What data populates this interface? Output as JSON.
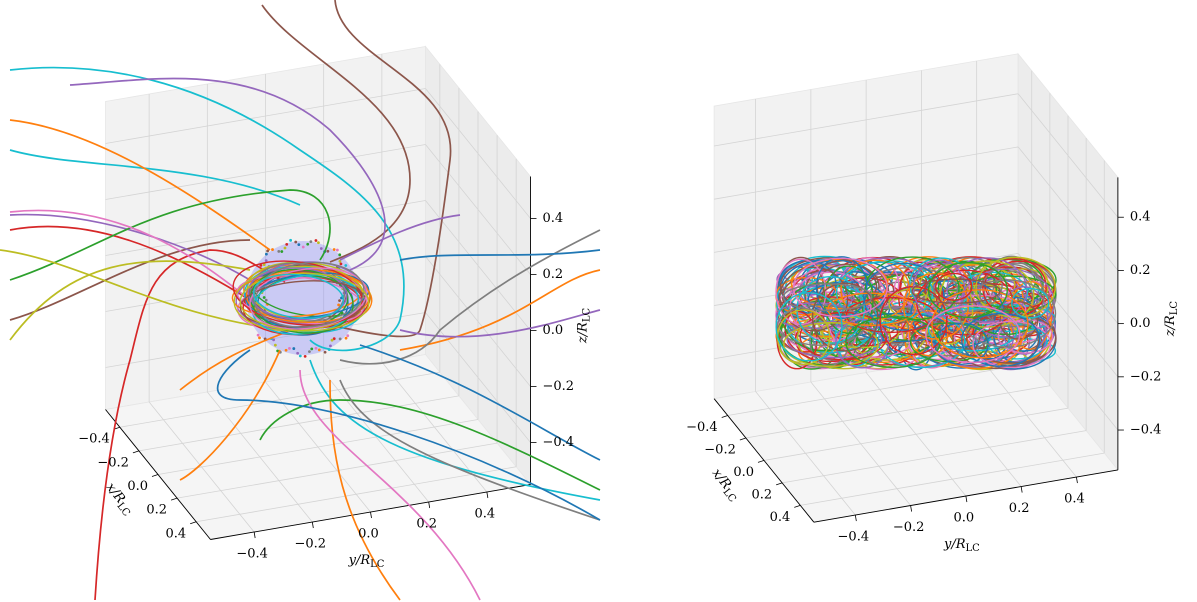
{
  "chart_data": [
    {
      "type": "line3d",
      "xlabel": {
        "text": "x/R",
        "sub": "LC"
      },
      "ylabel": {
        "text": "y/R",
        "sub": "LC"
      },
      "zlabel": {
        "text": "z/R",
        "sub": "LC"
      },
      "xlim": [
        -0.55,
        0.55
      ],
      "ylim": [
        -0.55,
        0.55
      ],
      "zlim": [
        -0.55,
        0.55
      ],
      "xticks": [
        {
          "value": -0.4,
          "label": "−0.4"
        },
        {
          "value": -0.2,
          "label": "−0.2"
        },
        {
          "value": 0,
          "label": "0.0"
        },
        0.2,
        0.4
      ],
      "yticks": [
        {
          "value": -0.4,
          "label": "−0.4"
        },
        {
          "value": -0.2,
          "label": "−0.2"
        },
        {
          "value": 0,
          "label": "0.0"
        },
        0.2,
        0.4
      ],
      "zticks": [
        {
          "value": -0.4,
          "label": "−0.4"
        },
        {
          "value": -0.2,
          "label": "−0.2"
        },
        {
          "value": 0,
          "label": "0.0"
        },
        0.2,
        0.4
      ]
    },
    {
      "type": "line3d",
      "xlabel": {
        "text": "x/R",
        "sub": "LC"
      },
      "ylabel": {
        "text": "y/R",
        "sub": "LC"
      },
      "zlabel": {
        "text": "z/R",
        "sub": "LC"
      },
      "xlim": [
        -0.55,
        0.55
      ],
      "ylim": [
        -0.55,
        0.55
      ],
      "zlim": [
        -0.55,
        0.55
      ],
      "xticks": [
        {
          "value": -0.4,
          "label": "−0.4"
        },
        {
          "value": -0.2,
          "label": "−0.2"
        },
        {
          "value": 0,
          "label": "0.0"
        },
        0.2,
        0.4
      ],
      "yticks": [
        {
          "value": -0.4,
          "label": "−0.4"
        },
        {
          "value": -0.2,
          "label": "−0.2"
        },
        {
          "value": 0,
          "label": "0.0"
        },
        0.2,
        0.4
      ],
      "zticks": [
        {
          "value": -0.4,
          "label": "−0.4"
        },
        {
          "value": -0.2,
          "label": "−0.2"
        },
        {
          "value": 0,
          "label": "0.0"
        },
        0.2,
        0.4
      ]
    }
  ]
}
